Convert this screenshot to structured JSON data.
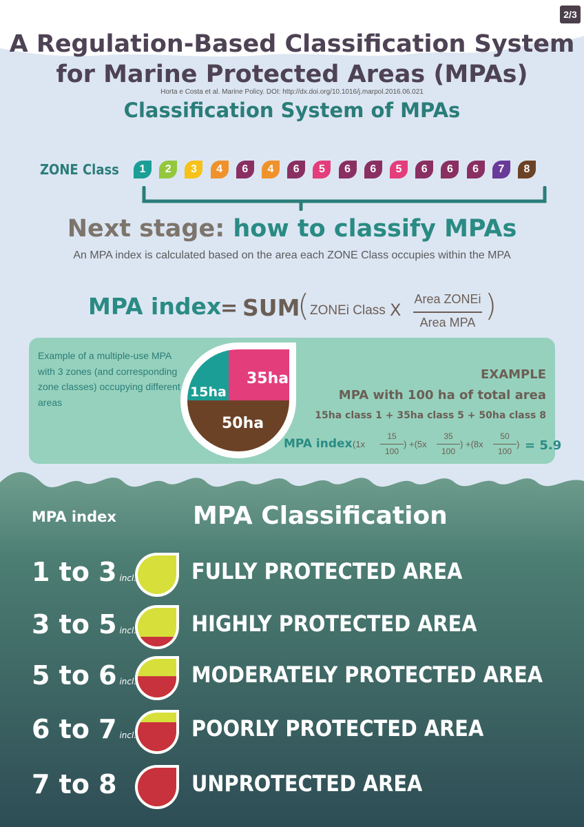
{
  "page_badge": "2/3",
  "title_line1": "A Regulation-Based Classification System",
  "title_line2": "for Marine Protected Areas (MPAs)",
  "citation": "Horta e Costa et al. Marine Policy. DOI: http://dx.doi.org/10.1016/j.marpol.2016.06.021",
  "section_title": "Classification System of MPAs",
  "zone_label": "ZONE Class",
  "zones": [
    {
      "n": "1",
      "color": "#1a9e96"
    },
    {
      "n": "2",
      "color": "#93c83e"
    },
    {
      "n": "3",
      "color": "#f6c21a"
    },
    {
      "n": "4",
      "color": "#f0922b"
    },
    {
      "n": "6",
      "color": "#8a2f62"
    },
    {
      "n": "4",
      "color": "#f0922b"
    },
    {
      "n": "6",
      "color": "#8a2f62"
    },
    {
      "n": "5",
      "color": "#e43d7c"
    },
    {
      "n": "6",
      "color": "#8a2f62"
    },
    {
      "n": "6",
      "color": "#8a2f62"
    },
    {
      "n": "5",
      "color": "#e43d7c"
    },
    {
      "n": "6",
      "color": "#8a2f62"
    },
    {
      "n": "6",
      "color": "#8a2f62"
    },
    {
      "n": "6",
      "color": "#8a2f62"
    },
    {
      "n": "7",
      "color": "#6a3a98"
    },
    {
      "n": "8",
      "color": "#6b4226"
    }
  ],
  "next_stage_a": "Next stage:",
  "next_stage_b": "how to classify MPAs",
  "subtext": "An MPA index is calculated based on the area each ZONE Class occupies within the MPA",
  "formula": {
    "label": "MPA index",
    "eq": "=",
    "sum": "SUM",
    "paren_open": "(",
    "paren_close": ")",
    "zone_class": "ZONEi Class",
    "times": "X",
    "numerator": "Area ZONEi",
    "denominator": "Area MPA"
  },
  "example": {
    "description": "Example of a multiple-use MPA with 3 zones (and corresponding zone classes) occupying different areas",
    "pie_labels": {
      "a": "15ha",
      "b": "35ha",
      "c": "50ha"
    },
    "pie_colors": {
      "a": "#1a9e96",
      "b": "#e43d7c",
      "c": "#6b4226"
    },
    "heading": "EXAMPLE",
    "total": "MPA with 100 ha of total area",
    "classes": "15ha class 1 + 35ha class 5 + 50ha class 8",
    "formula_label": "MPA index",
    "terms": [
      {
        "mult": "1x",
        "num": "15",
        "den": "100"
      },
      {
        "mult": "5x",
        "num": "35",
        "den": "100"
      },
      {
        "mult": "8x",
        "num": "50",
        "den": "100"
      }
    ],
    "result": "= 5.9"
  },
  "table": {
    "header_index": "MPA index",
    "header_class": "MPA Classification",
    "incl": "incl.",
    "rows": [
      {
        "range": "1 to 3",
        "incl": true,
        "label": "FULLY PROTECTED AREA",
        "red_fraction": 0
      },
      {
        "range": "3 to 5",
        "incl": true,
        "label": "HIGHLY PROTECTED AREA",
        "red_fraction": 0.25
      },
      {
        "range": "5 to 6",
        "incl": true,
        "label": "MODERATELY PROTECTED AREA",
        "red_fraction": 0.55
      },
      {
        "range": "6 to 7",
        "incl": true,
        "label": "POORLY PROTECTED AREA",
        "red_fraction": 0.75
      },
      {
        "range": "7 to 8",
        "incl": false,
        "label": "UNPROTECTED AREA",
        "red_fraction": 1
      }
    ],
    "yellow": "#d7df3a",
    "red": "#c8323c"
  }
}
